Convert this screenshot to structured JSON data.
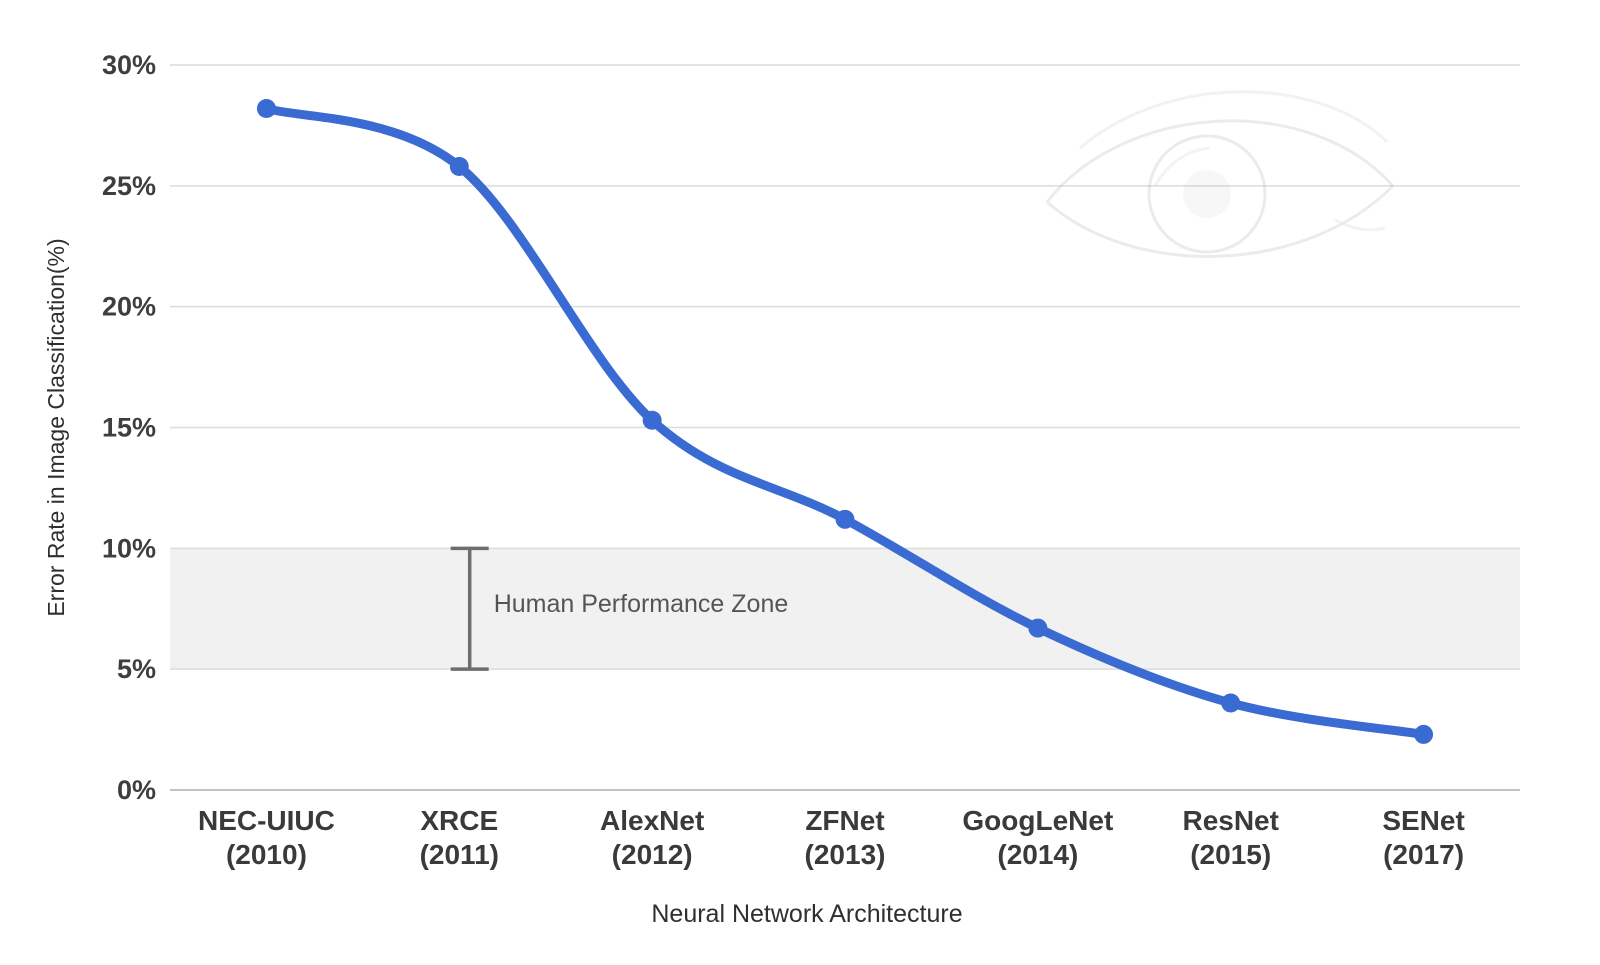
{
  "chart_data": {
    "type": "line",
    "categories": [
      {
        "name": "NEC-UIUC",
        "year": "(2010)"
      },
      {
        "name": "XRCE",
        "year": "(2011)"
      },
      {
        "name": "AlexNet",
        "year": "(2012)"
      },
      {
        "name": "ZFNet",
        "year": "(2013)"
      },
      {
        "name": "GoogLeNet",
        "year": "(2014)"
      },
      {
        "name": "ResNet",
        "year": "(2015)"
      },
      {
        "name": "SENet",
        "year": "(2017)"
      }
    ],
    "values": [
      28.2,
      25.8,
      15.3,
      11.2,
      6.7,
      3.6,
      2.3
    ],
    "title": "",
    "xlabel": "Neural Network Architecture",
    "ylabel": "Error Rate in Image Classification(%)",
    "ylim": [
      0,
      30
    ],
    "ytick_step": 5,
    "ytick_suffix": "%",
    "grid": true,
    "legend": "none",
    "annotation": {
      "label": "Human Performance Zone",
      "band_min": 5,
      "band_max": 10,
      "errorbar_x_fraction": 0.222
    },
    "colors": {
      "line": "#3a6bd2",
      "point": "#3a6bd2",
      "grid": "#dcdcdc",
      "baseline": "#c2c2c2",
      "band": "#f1f1f1",
      "errorbar": "#6e6e6e",
      "annotation_text": "#555555",
      "tick_text": "#3e3e3e",
      "category_text": "#3a3a3a",
      "axis_title_text": "#2f2f2f",
      "watermark": "#8a8a8a"
    },
    "watermark": "eye-image"
  }
}
